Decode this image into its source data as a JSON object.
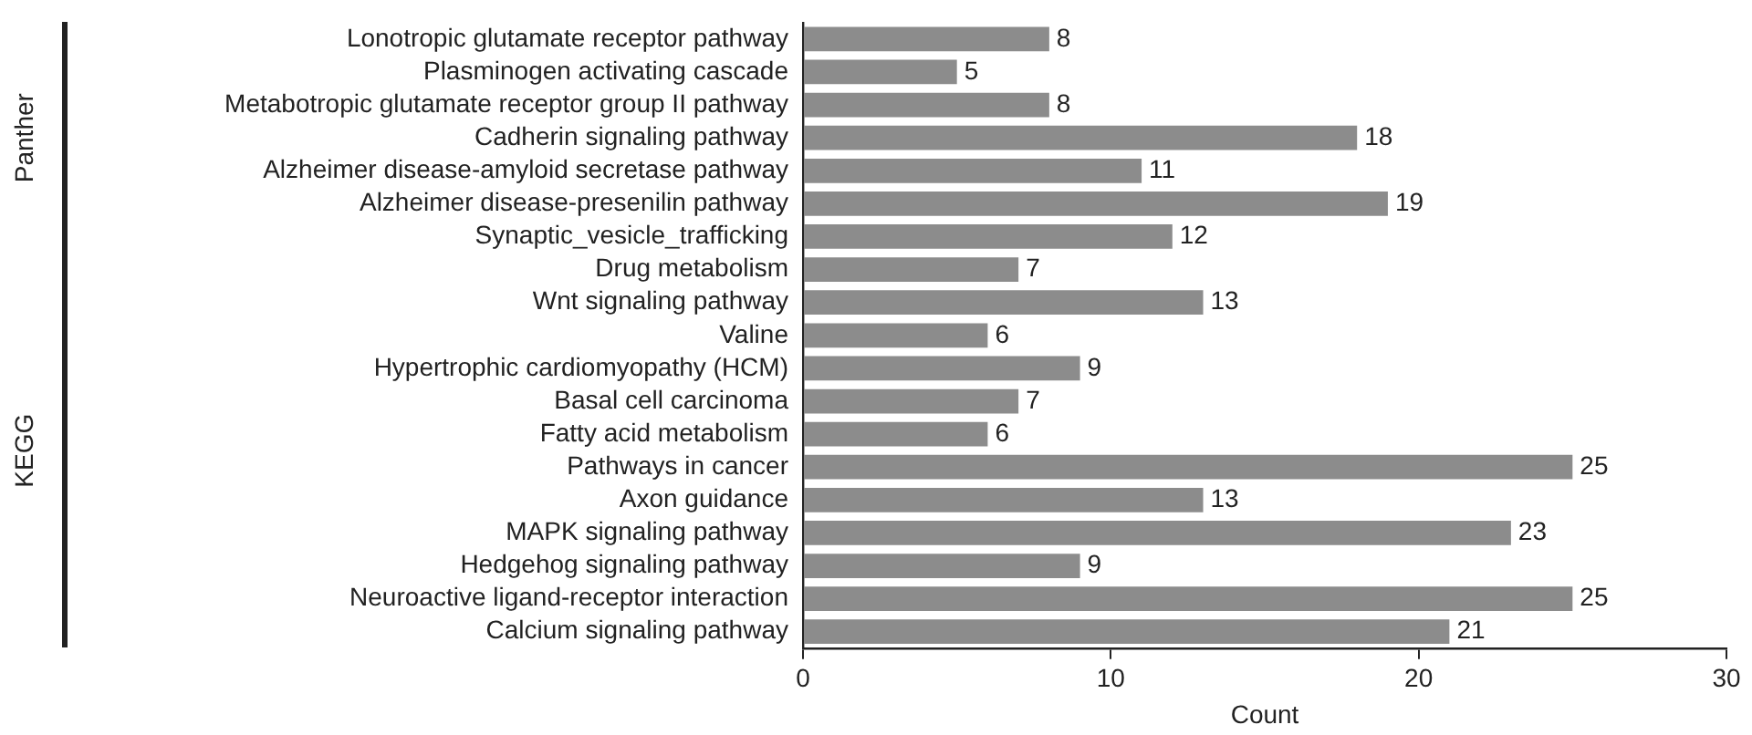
{
  "chart_data": {
    "type": "bar",
    "orientation": "horizontal",
    "xlabel": "Count",
    "categories": [
      "Lonotropic glutamate receptor pathway",
      "Plasminogen activating cascade",
      "Metabotropic glutamate receptor group II pathway",
      "Cadherin signaling pathway",
      "Alzheimer disease-amyloid secretase pathway",
      "Alzheimer disease-presenilin pathway",
      "Synaptic_vesicle_trafficking",
      "Drug metabolism",
      "Wnt signaling pathway",
      "Valine",
      "Hypertrophic cardiomyopathy (HCM)",
      "Basal cell carcinoma",
      "Fatty acid metabolism",
      "Pathways in cancer",
      "Axon guidance",
      "MAPK signaling pathway",
      "Hedgehog signaling pathway",
      "Neuroactive ligand-receptor interaction",
      "Calcium signaling pathway"
    ],
    "values": [
      8,
      5,
      8,
      18,
      11,
      19,
      12,
      7,
      13,
      6,
      9,
      7,
      6,
      25,
      13,
      23,
      9,
      25,
      21
    ],
    "color": "#8c8c8c",
    "xlim": [
      0,
      30
    ],
    "xticks": [
      0,
      10,
      20,
      30
    ],
    "data_labels": true,
    "grid": false,
    "legend": false,
    "annotations": [
      "Panther",
      "KEGG"
    ]
  }
}
